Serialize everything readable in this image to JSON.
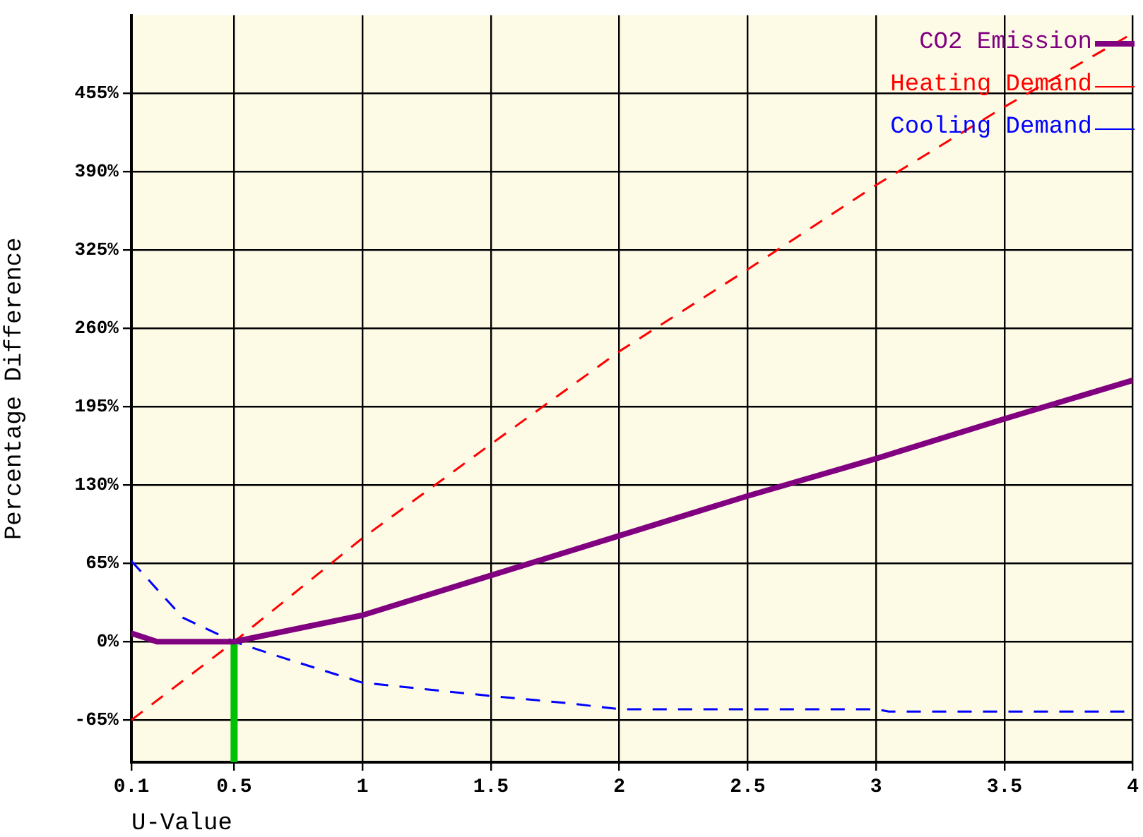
{
  "chart_data": {
    "type": "line",
    "xlabel": "U-Value",
    "ylabel": "Percentage Difference",
    "xlim": [
      0.1,
      4
    ],
    "xticks": [
      0.1,
      0.5,
      1,
      1.5,
      2,
      2.5,
      3,
      3.5,
      4
    ],
    "ylim": [
      -100,
      520
    ],
    "yticks": [
      {
        "value": -65,
        "label": "-65%"
      },
      {
        "value": 0,
        "label": "0%"
      },
      {
        "value": 65,
        "label": "65%"
      },
      {
        "value": 130,
        "label": "130%"
      },
      {
        "value": 195,
        "label": "195%"
      },
      {
        "value": 260,
        "label": "260%"
      },
      {
        "value": 325,
        "label": "325%"
      },
      {
        "value": 390,
        "label": "390%"
      },
      {
        "value": 455,
        "label": "455%"
      }
    ],
    "grid": true,
    "legend": "top right",
    "marker": "none",
    "series": [
      {
        "name": "CO2 Emission",
        "color": "#800080",
        "line_style": "solid",
        "x": [
          0.1,
          0.2,
          0.3,
          0.45,
          0.5,
          1,
          1.5,
          2,
          2.5,
          3,
          3.5,
          4
        ],
        "values": [
          7,
          0,
          0,
          0,
          0,
          22,
          55,
          88,
          121,
          152,
          185,
          217
        ]
      },
      {
        "name": "Heating Demand",
        "color": "#ff0000",
        "line_style": "dashed",
        "x": [
          0.1,
          0.5,
          1,
          1.5,
          2,
          2.5,
          3,
          3.5,
          4
        ],
        "values": [
          -65,
          0,
          86,
          164,
          241,
          309,
          379,
          444,
          505
        ]
      },
      {
        "name": "Cooling Demand",
        "color": "#0000ff",
        "line_style": "dashed",
        "x": [
          0.1,
          0.3,
          0.5,
          0.7,
          1,
          1.5,
          1.8,
          2,
          3,
          3.05,
          4
        ],
        "values": [
          67,
          20,
          0,
          -14,
          -34,
          -45,
          -51,
          -56,
          -56,
          -58,
          -58
        ]
      },
      {
        "type": "line",
        "color": "#00c000",
        "line_style": "solid",
        "x": [
          0.5,
          0.5
        ],
        "values": [
          -100,
          0
        ]
      }
    ]
  }
}
